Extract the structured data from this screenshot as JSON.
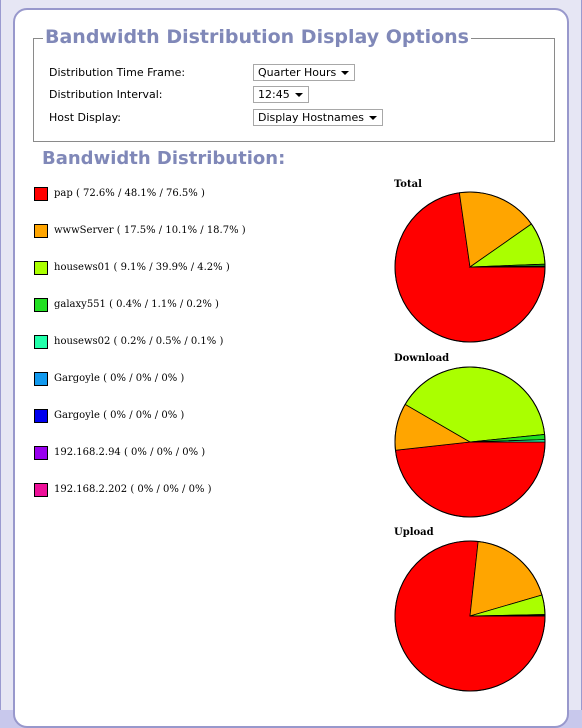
{
  "options": {
    "title": "Bandwidth Distribution Display Options",
    "rows": [
      {
        "label": "Distribution Time Frame:",
        "value": "Quarter Hours"
      },
      {
        "label": "Distribution Interval:",
        "value": "12:45"
      },
      {
        "label": "Host Display:",
        "value": "Display Hostnames"
      }
    ]
  },
  "distribution": {
    "title": "Bandwidth Distribution:",
    "legend": [
      {
        "text": "pap ( 72.6% / 48.1% / 76.5% )",
        "color": "#ff0000"
      },
      {
        "text": "wwwServer ( 17.5% / 10.1% / 18.7% )",
        "color": "#ffa500"
      },
      {
        "text": "housews01 ( 9.1% / 39.9% / 4.2% )",
        "color": "#aaff00"
      },
      {
        "text": "galaxy551 ( 0.4% / 1.1% / 0.2% )",
        "color": "#22e022"
      },
      {
        "text": "housews02 ( 0.2% / 0.5% / 0.1% )",
        "color": "#22ffaa"
      },
      {
        "text": "Gargoyle ( 0% / 0% / 0% )",
        "color": "#1199ee"
      },
      {
        "text": "Gargoyle ( 0% / 0% / 0% )",
        "color": "#0000ee"
      },
      {
        "text": "192.168.2.94 ( 0% / 0% / 0% )",
        "color": "#9900ee"
      },
      {
        "text": "192.168.2.202 ( 0% / 0% / 0% )",
        "color": "#ee1199"
      }
    ]
  },
  "chart_data": [
    {
      "type": "pie",
      "title": "Total",
      "categories": [
        "pap",
        "wwwServer",
        "housews01",
        "galaxy551",
        "housews02",
        "Gargoyle",
        "Gargoyle",
        "192.168.2.94",
        "192.168.2.202"
      ],
      "values": [
        72.6,
        17.5,
        9.1,
        0.4,
        0.2,
        0,
        0,
        0,
        0
      ]
    },
    {
      "type": "pie",
      "title": "Download",
      "categories": [
        "pap",
        "wwwServer",
        "housews01",
        "galaxy551",
        "housews02",
        "Gargoyle",
        "Gargoyle",
        "192.168.2.94",
        "192.168.2.202"
      ],
      "values": [
        48.1,
        10.1,
        39.9,
        1.1,
        0.5,
        0,
        0,
        0,
        0
      ]
    },
    {
      "type": "pie",
      "title": "Upload",
      "categories": [
        "pap",
        "wwwServer",
        "housews01",
        "galaxy551",
        "housews02",
        "Gargoyle",
        "Gargoyle",
        "192.168.2.94",
        "192.168.2.202"
      ],
      "values": [
        76.5,
        18.7,
        4.2,
        0.2,
        0.1,
        0,
        0,
        0,
        0
      ]
    }
  ]
}
